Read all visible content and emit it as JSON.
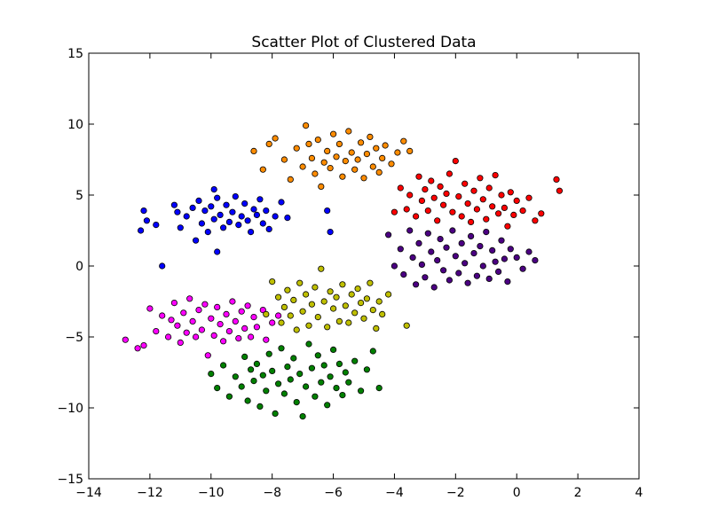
{
  "chart_data": {
    "type": "scatter",
    "title": "Scatter Plot of Clustered Data",
    "xlabel": "",
    "ylabel": "",
    "xlim": [
      -14,
      4
    ],
    "ylim": [
      -15,
      15
    ],
    "x_ticks": [
      -14,
      -12,
      -10,
      -8,
      -6,
      -4,
      -2,
      0,
      2,
      4
    ],
    "y_ticks": [
      -15,
      -10,
      -5,
      0,
      5,
      10,
      15
    ],
    "x_tick_labels": [
      "−14",
      "−12",
      "−10",
      "−8",
      "−6",
      "−4",
      "−2",
      "0",
      "2",
      "4"
    ],
    "y_tick_labels": [
      "−15",
      "−10",
      "−5",
      "0",
      "5",
      "10",
      "15"
    ],
    "grid": false,
    "legend": "none",
    "marker_edge_color": "#000000",
    "series": [
      {
        "color": "#0000ff",
        "points": [
          [
            -12.3,
            2.5
          ],
          [
            -12.2,
            3.9
          ],
          [
            -12.1,
            3.2
          ],
          [
            -11.8,
            2.9
          ],
          [
            -11.6,
            0.0
          ],
          [
            -11.2,
            4.3
          ],
          [
            -11.1,
            3.8
          ],
          [
            -11.0,
            2.7
          ],
          [
            -10.8,
            3.5
          ],
          [
            -10.6,
            4.1
          ],
          [
            -10.5,
            1.8
          ],
          [
            -10.4,
            4.6
          ],
          [
            -10.3,
            3.0
          ],
          [
            -10.2,
            3.9
          ],
          [
            -10.1,
            2.4
          ],
          [
            -10.0,
            4.2
          ],
          [
            -9.9,
            3.3
          ],
          [
            -9.9,
            5.4
          ],
          [
            -9.8,
            4.8
          ],
          [
            -9.8,
            1.0
          ],
          [
            -9.7,
            3.6
          ],
          [
            -9.6,
            2.7
          ],
          [
            -9.5,
            4.3
          ],
          [
            -9.4,
            3.1
          ],
          [
            -9.3,
            3.8
          ],
          [
            -9.2,
            4.9
          ],
          [
            -9.1,
            2.9
          ],
          [
            -9.0,
            3.5
          ],
          [
            -8.9,
            4.4
          ],
          [
            -8.8,
            3.2
          ],
          [
            -8.7,
            2.4
          ],
          [
            -8.6,
            4.0
          ],
          [
            -8.5,
            3.6
          ],
          [
            -8.4,
            4.7
          ],
          [
            -8.3,
            3.0
          ],
          [
            -8.2,
            3.9
          ],
          [
            -8.1,
            2.6
          ],
          [
            -7.9,
            3.5
          ],
          [
            -7.7,
            4.5
          ],
          [
            -7.5,
            3.4
          ],
          [
            -6.2,
            3.9
          ],
          [
            -6.1,
            2.4
          ]
        ]
      },
      {
        "color": "#ff8c00",
        "points": [
          [
            -8.6,
            8.1
          ],
          [
            -8.3,
            6.8
          ],
          [
            -8.1,
            8.6
          ],
          [
            -7.9,
            9.0
          ],
          [
            -7.6,
            7.5
          ],
          [
            -7.4,
            6.1
          ],
          [
            -7.2,
            8.3
          ],
          [
            -7.0,
            7.0
          ],
          [
            -6.9,
            9.9
          ],
          [
            -6.8,
            8.6
          ],
          [
            -6.7,
            7.6
          ],
          [
            -6.6,
            6.5
          ],
          [
            -6.5,
            8.9
          ],
          [
            -6.4,
            5.6
          ],
          [
            -6.3,
            7.3
          ],
          [
            -6.2,
            8.1
          ],
          [
            -6.1,
            6.9
          ],
          [
            -6.0,
            9.3
          ],
          [
            -5.9,
            7.7
          ],
          [
            -5.8,
            8.6
          ],
          [
            -5.7,
            6.3
          ],
          [
            -5.6,
            7.4
          ],
          [
            -5.5,
            9.5
          ],
          [
            -5.4,
            8.0
          ],
          [
            -5.3,
            6.8
          ],
          [
            -5.2,
            7.5
          ],
          [
            -5.1,
            8.7
          ],
          [
            -5.0,
            6.2
          ],
          [
            -4.9,
            7.9
          ],
          [
            -4.8,
            9.1
          ],
          [
            -4.7,
            7.0
          ],
          [
            -4.6,
            8.3
          ],
          [
            -4.5,
            6.6
          ],
          [
            -4.4,
            7.6
          ],
          [
            -4.3,
            8.5
          ],
          [
            -4.1,
            7.2
          ],
          [
            -3.9,
            8.0
          ],
          [
            -3.7,
            8.8
          ],
          [
            -3.5,
            8.1
          ]
        ]
      },
      {
        "color": "#ff0000",
        "points": [
          [
            -4.0,
            3.8
          ],
          [
            -3.8,
            5.5
          ],
          [
            -3.6,
            4.0
          ],
          [
            -3.5,
            5.0
          ],
          [
            -3.3,
            3.5
          ],
          [
            -3.2,
            6.3
          ],
          [
            -3.1,
            4.6
          ],
          [
            -3.0,
            5.4
          ],
          [
            -2.9,
            3.9
          ],
          [
            -2.8,
            6.0
          ],
          [
            -2.7,
            4.8
          ],
          [
            -2.6,
            3.2
          ],
          [
            -2.5,
            5.6
          ],
          [
            -2.4,
            4.3
          ],
          [
            -2.3,
            5.1
          ],
          [
            -2.2,
            6.5
          ],
          [
            -2.1,
            3.8
          ],
          [
            -2.0,
            7.4
          ],
          [
            -1.9,
            4.9
          ],
          [
            -1.8,
            3.5
          ],
          [
            -1.7,
            5.8
          ],
          [
            -1.6,
            4.4
          ],
          [
            -1.5,
            3.1
          ],
          [
            -1.4,
            5.3
          ],
          [
            -1.3,
            4.0
          ],
          [
            -1.2,
            6.2
          ],
          [
            -1.1,
            4.7
          ],
          [
            -1.0,
            3.3
          ],
          [
            -0.9,
            5.5
          ],
          [
            -0.8,
            4.2
          ],
          [
            -0.7,
            6.4
          ],
          [
            -0.6,
            3.7
          ],
          [
            -0.5,
            5.0
          ],
          [
            -0.4,
            4.1
          ],
          [
            -0.3,
            2.8
          ],
          [
            -0.2,
            5.2
          ],
          [
            -0.1,
            3.6
          ],
          [
            0.0,
            4.6
          ],
          [
            0.2,
            3.9
          ],
          [
            0.4,
            4.8
          ],
          [
            0.6,
            3.2
          ],
          [
            0.8,
            3.7
          ],
          [
            1.3,
            6.1
          ],
          [
            1.4,
            5.3
          ]
        ]
      },
      {
        "color": "#4b0082",
        "points": [
          [
            -4.2,
            2.2
          ],
          [
            -4.0,
            0.0
          ],
          [
            -3.8,
            1.2
          ],
          [
            -3.7,
            -0.6
          ],
          [
            -3.5,
            2.5
          ],
          [
            -3.4,
            0.6
          ],
          [
            -3.3,
            -1.3
          ],
          [
            -3.2,
            1.6
          ],
          [
            -3.1,
            0.1
          ],
          [
            -3.0,
            -0.8
          ],
          [
            -2.9,
            2.3
          ],
          [
            -2.8,
            1.0
          ],
          [
            -2.7,
            -1.5
          ],
          [
            -2.6,
            0.4
          ],
          [
            -2.5,
            1.9
          ],
          [
            -2.4,
            -0.3
          ],
          [
            -2.3,
            1.3
          ],
          [
            -2.2,
            -1.0
          ],
          [
            -2.1,
            2.5
          ],
          [
            -2.0,
            0.7
          ],
          [
            -1.9,
            -0.5
          ],
          [
            -1.8,
            1.6
          ],
          [
            -1.7,
            0.2
          ],
          [
            -1.6,
            -1.2
          ],
          [
            -1.5,
            2.1
          ],
          [
            -1.4,
            0.9
          ],
          [
            -1.3,
            -0.7
          ],
          [
            -1.2,
            1.4
          ],
          [
            -1.1,
            0.0
          ],
          [
            -1.0,
            2.4
          ],
          [
            -0.9,
            -0.9
          ],
          [
            -0.8,
            1.1
          ],
          [
            -0.7,
            0.3
          ],
          [
            -0.6,
            -0.4
          ],
          [
            -0.5,
            1.8
          ],
          [
            -0.4,
            0.5
          ],
          [
            -0.3,
            -1.1
          ],
          [
            -0.2,
            1.2
          ],
          [
            0.0,
            0.6
          ],
          [
            0.2,
            -0.2
          ],
          [
            0.4,
            1.0
          ],
          [
            0.6,
            0.4
          ]
        ]
      },
      {
        "color": "#ff00ff",
        "points": [
          [
            -12.8,
            -5.2
          ],
          [
            -12.4,
            -5.8
          ],
          [
            -12.2,
            -5.6
          ],
          [
            -12.0,
            -3.0
          ],
          [
            -11.8,
            -4.6
          ],
          [
            -11.6,
            -3.5
          ],
          [
            -11.4,
            -5.0
          ],
          [
            -11.3,
            -3.8
          ],
          [
            -11.2,
            -2.6
          ],
          [
            -11.1,
            -4.2
          ],
          [
            -11.0,
            -5.4
          ],
          [
            -10.9,
            -3.3
          ],
          [
            -10.8,
            -4.7
          ],
          [
            -10.7,
            -2.3
          ],
          [
            -10.6,
            -3.9
          ],
          [
            -10.5,
            -5.0
          ],
          [
            -10.4,
            -3.1
          ],
          [
            -10.3,
            -4.5
          ],
          [
            -10.2,
            -2.7
          ],
          [
            -10.1,
            -6.3
          ],
          [
            -10.0,
            -3.7
          ],
          [
            -9.9,
            -4.9
          ],
          [
            -9.8,
            -2.9
          ],
          [
            -9.7,
            -4.1
          ],
          [
            -9.6,
            -5.3
          ],
          [
            -9.5,
            -3.4
          ],
          [
            -9.4,
            -4.6
          ],
          [
            -9.3,
            -2.5
          ],
          [
            -9.2,
            -3.9
          ],
          [
            -9.1,
            -5.1
          ],
          [
            -9.0,
            -3.2
          ],
          [
            -8.9,
            -4.4
          ],
          [
            -8.8,
            -2.8
          ],
          [
            -8.7,
            -5.0
          ],
          [
            -8.6,
            -3.6
          ],
          [
            -8.5,
            -4.3
          ],
          [
            -8.3,
            -3.1
          ],
          [
            -8.2,
            -5.2
          ],
          [
            -8.0,
            -4.0
          ],
          [
            -7.8,
            -3.5
          ]
        ]
      },
      {
        "color": "#bfbf00",
        "points": [
          [
            -8.2,
            -3.4
          ],
          [
            -8.0,
            -1.1
          ],
          [
            -7.8,
            -2.2
          ],
          [
            -7.7,
            -4.0
          ],
          [
            -7.6,
            -2.9
          ],
          [
            -7.5,
            -1.7
          ],
          [
            -7.4,
            -3.5
          ],
          [
            -7.3,
            -2.4
          ],
          [
            -7.2,
            -4.5
          ],
          [
            -7.1,
            -1.2
          ],
          [
            -7.0,
            -3.2
          ],
          [
            -6.9,
            -2.0
          ],
          [
            -6.8,
            -4.2
          ],
          [
            -6.7,
            -2.7
          ],
          [
            -6.6,
            -1.5
          ],
          [
            -6.5,
            -3.6
          ],
          [
            -6.4,
            -0.2
          ],
          [
            -6.3,
            -2.5
          ],
          [
            -6.2,
            -4.3
          ],
          [
            -6.1,
            -1.8
          ],
          [
            -6.0,
            -3.0
          ],
          [
            -5.9,
            -2.2
          ],
          [
            -5.8,
            -3.9
          ],
          [
            -5.7,
            -1.3
          ],
          [
            -5.6,
            -2.8
          ],
          [
            -5.5,
            -4.0
          ],
          [
            -5.4,
            -2.0
          ],
          [
            -5.3,
            -3.3
          ],
          [
            -5.2,
            -1.6
          ],
          [
            -5.1,
            -2.6
          ],
          [
            -5.0,
            -3.7
          ],
          [
            -4.9,
            -2.3
          ],
          [
            -4.8,
            -1.2
          ],
          [
            -4.7,
            -3.1
          ],
          [
            -4.6,
            -4.4
          ],
          [
            -4.5,
            -2.5
          ],
          [
            -4.4,
            -3.4
          ],
          [
            -4.2,
            -2.0
          ],
          [
            -3.6,
            -4.2
          ]
        ]
      },
      {
        "color": "#008000",
        "points": [
          [
            -10.0,
            -7.6
          ],
          [
            -9.8,
            -8.6
          ],
          [
            -9.6,
            -7.0
          ],
          [
            -9.4,
            -9.2
          ],
          [
            -9.2,
            -7.8
          ],
          [
            -9.0,
            -8.5
          ],
          [
            -8.9,
            -6.4
          ],
          [
            -8.8,
            -9.5
          ],
          [
            -8.7,
            -7.3
          ],
          [
            -8.6,
            -8.1
          ],
          [
            -8.5,
            -6.9
          ],
          [
            -8.4,
            -9.9
          ],
          [
            -8.3,
            -7.7
          ],
          [
            -8.2,
            -8.8
          ],
          [
            -8.1,
            -6.2
          ],
          [
            -8.0,
            -7.4
          ],
          [
            -7.9,
            -10.4
          ],
          [
            -7.8,
            -8.3
          ],
          [
            -7.7,
            -5.8
          ],
          [
            -7.6,
            -9.0
          ],
          [
            -7.5,
            -7.1
          ],
          [
            -7.4,
            -8.0
          ],
          [
            -7.3,
            -6.5
          ],
          [
            -7.2,
            -9.6
          ],
          [
            -7.1,
            -7.6
          ],
          [
            -7.0,
            -10.6
          ],
          [
            -6.9,
            -8.5
          ],
          [
            -6.8,
            -5.5
          ],
          [
            -6.7,
            -7.2
          ],
          [
            -6.6,
            -9.2
          ],
          [
            -6.5,
            -6.3
          ],
          [
            -6.4,
            -8.2
          ],
          [
            -6.3,
            -7.0
          ],
          [
            -6.2,
            -9.8
          ],
          [
            -6.1,
            -7.8
          ],
          [
            -6.0,
            -5.9
          ],
          [
            -5.9,
            -8.6
          ],
          [
            -5.8,
            -6.9
          ],
          [
            -5.7,
            -9.1
          ],
          [
            -5.6,
            -7.5
          ],
          [
            -5.5,
            -8.2
          ],
          [
            -5.3,
            -6.7
          ],
          [
            -5.1,
            -8.8
          ],
          [
            -4.9,
            -7.3
          ],
          [
            -4.7,
            -6.0
          ],
          [
            -4.5,
            -8.6
          ]
        ]
      }
    ]
  }
}
